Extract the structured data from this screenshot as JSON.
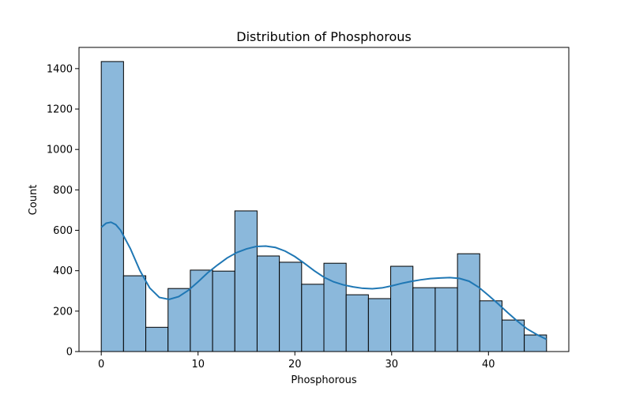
{
  "chart_data": {
    "type": "bar",
    "title": "Distribution of Phosphorous",
    "xlabel": "Phosphorous",
    "ylabel": "Count",
    "xlim": [
      -2.3,
      48.3
    ],
    "ylim": [
      0,
      1505
    ],
    "xticks": [
      0,
      10,
      20,
      30,
      40
    ],
    "yticks": [
      0,
      200,
      400,
      600,
      800,
      1000,
      1200,
      1400
    ],
    "bin_edges": [
      0,
      2.3,
      4.6,
      6.9,
      9.2,
      11.5,
      13.8,
      16.1,
      18.4,
      20.7,
      23.0,
      25.3,
      27.6,
      29.9,
      32.2,
      34.5,
      36.8,
      39.1,
      41.4,
      43.7,
      46.0
    ],
    "values": [
      1435,
      375,
      120,
      312,
      403,
      398,
      696,
      473,
      442,
      333,
      437,
      281,
      262,
      422,
      316,
      316,
      484,
      251,
      156,
      82
    ],
    "kde": {
      "x": [
        0,
        0.5,
        1,
        1.5,
        2,
        3,
        4,
        5,
        6,
        7,
        8,
        9,
        10,
        11,
        12,
        13,
        14,
        15,
        16,
        17,
        18,
        19,
        20,
        21,
        22,
        23,
        24,
        25,
        26,
        27,
        28,
        29,
        30,
        31,
        32,
        33,
        34,
        35,
        36,
        37,
        38,
        39,
        40,
        41,
        42,
        43,
        44,
        45,
        46
      ],
      "y": [
        615,
        635,
        640,
        628,
        600,
        510,
        400,
        315,
        268,
        258,
        272,
        303,
        345,
        390,
        428,
        463,
        490,
        508,
        520,
        522,
        515,
        497,
        470,
        436,
        400,
        368,
        345,
        330,
        320,
        313,
        311,
        315,
        325,
        337,
        347,
        355,
        361,
        364,
        366,
        362,
        348,
        318,
        278,
        236,
        192,
        150,
        112,
        84,
        60
      ]
    },
    "colors": {
      "bar_fill": "#8bb8db",
      "bar_edge": "#000000",
      "kde_line": "#1f77b4"
    },
    "grid": false,
    "legend": "none"
  }
}
